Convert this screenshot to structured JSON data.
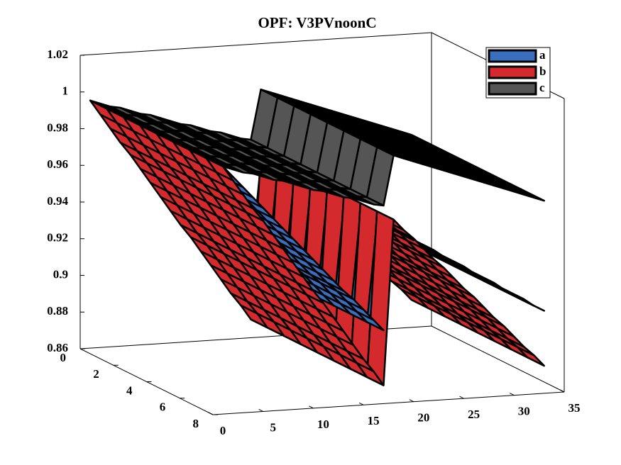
{
  "chart_data": {
    "type": "surface",
    "title": "OPF: V3PVnoonC",
    "x": [
      1,
      2,
      3,
      4,
      5,
      6,
      7,
      8,
      9,
      10,
      11,
      12,
      13,
      14,
      15,
      16,
      17,
      18,
      19,
      20,
      21,
      22,
      23,
      24,
      25,
      26,
      27,
      28,
      29,
      30,
      31,
      32,
      33
    ],
    "series": [
      {
        "name": "a",
        "color": "#3a6fc0",
        "values": [
          0.995,
          0.989,
          0.983,
          0.977,
          0.971,
          0.965,
          0.959,
          0.953,
          0.947,
          0.941,
          0.935,
          0.929,
          0.923,
          0.918,
          0.912,
          0.906,
          0.9,
          0.955,
          0.952,
          0.948,
          0.945,
          0.942,
          0.938,
          0.935,
          0.932,
          0.928,
          0.925,
          0.922,
          0.918,
          0.915,
          0.912,
          0.908,
          0.905
        ]
      },
      {
        "name": "b",
        "color": "#d42a2e",
        "values": [
          0.995,
          0.987,
          0.979,
          0.971,
          0.964,
          0.956,
          0.948,
          0.94,
          0.932,
          0.924,
          0.917,
          0.909,
          0.901,
          0.893,
          0.885,
          0.878,
          0.87,
          0.96,
          0.954,
          0.949,
          0.943,
          0.937,
          0.932,
          0.926,
          0.92,
          0.915,
          0.909,
          0.903,
          0.898,
          0.892,
          0.886,
          0.881,
          0.875
        ]
      },
      {
        "name": "c",
        "color": "#555555",
        "values": [
          0.995,
          0.993,
          0.991,
          0.99,
          0.988,
          0.986,
          0.985,
          0.983,
          0.981,
          0.979,
          0.978,
          0.976,
          0.974,
          0.973,
          0.971,
          0.969,
          0.968,
          0.995,
          0.993,
          0.991,
          0.989,
          0.987,
          0.985,
          0.983,
          0.981,
          0.979,
          0.977,
          0.975,
          0.973,
          0.971,
          0.969,
          0.967,
          0.965
        ]
      }
    ],
    "xlim": [
      0,
      35
    ],
    "xticks": [
      0,
      5,
      10,
      15,
      20,
      25,
      30,
      35
    ],
    "ylim": [
      0,
      8
    ],
    "yticks": [
      0,
      2,
      4,
      6,
      8
    ],
    "zlim": [
      0.86,
      1.02
    ],
    "zticks": [
      0.86,
      0.88,
      0.9,
      0.92,
      0.94,
      0.96,
      0.98,
      1,
      1.02
    ],
    "legend": "upper right"
  }
}
